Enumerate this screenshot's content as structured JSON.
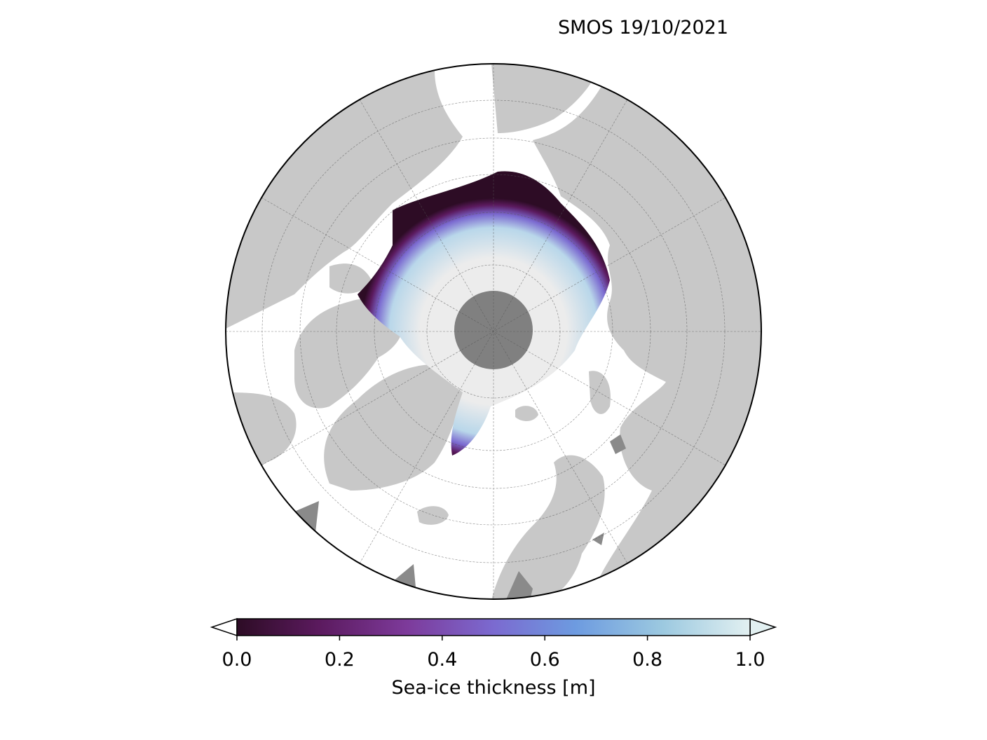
{
  "map": {
    "title": "SMOS 19/10/2021",
    "projection": "north-polar-stereographic",
    "colors": {
      "land": "#c8c8c8",
      "ocean": "#ffffff",
      "pole_hole": "#808080",
      "thick_ice": "#ececec"
    }
  },
  "colorbar": {
    "label": "Sea-ice thickness [m]",
    "ticks": [
      "0.0",
      "0.2",
      "0.4",
      "0.6",
      "0.8",
      "1.0"
    ],
    "tick_values": [
      0.0,
      0.2,
      0.4,
      0.6,
      0.8,
      1.0
    ],
    "range": [
      0.0,
      1.0
    ],
    "extend": "both",
    "colormap_stops": [
      "#2d0c25",
      "#5b1a5e",
      "#7d3a9a",
      "#7b6ad0",
      "#6d9be0",
      "#9cc9e0",
      "#e2f0f1"
    ]
  }
}
